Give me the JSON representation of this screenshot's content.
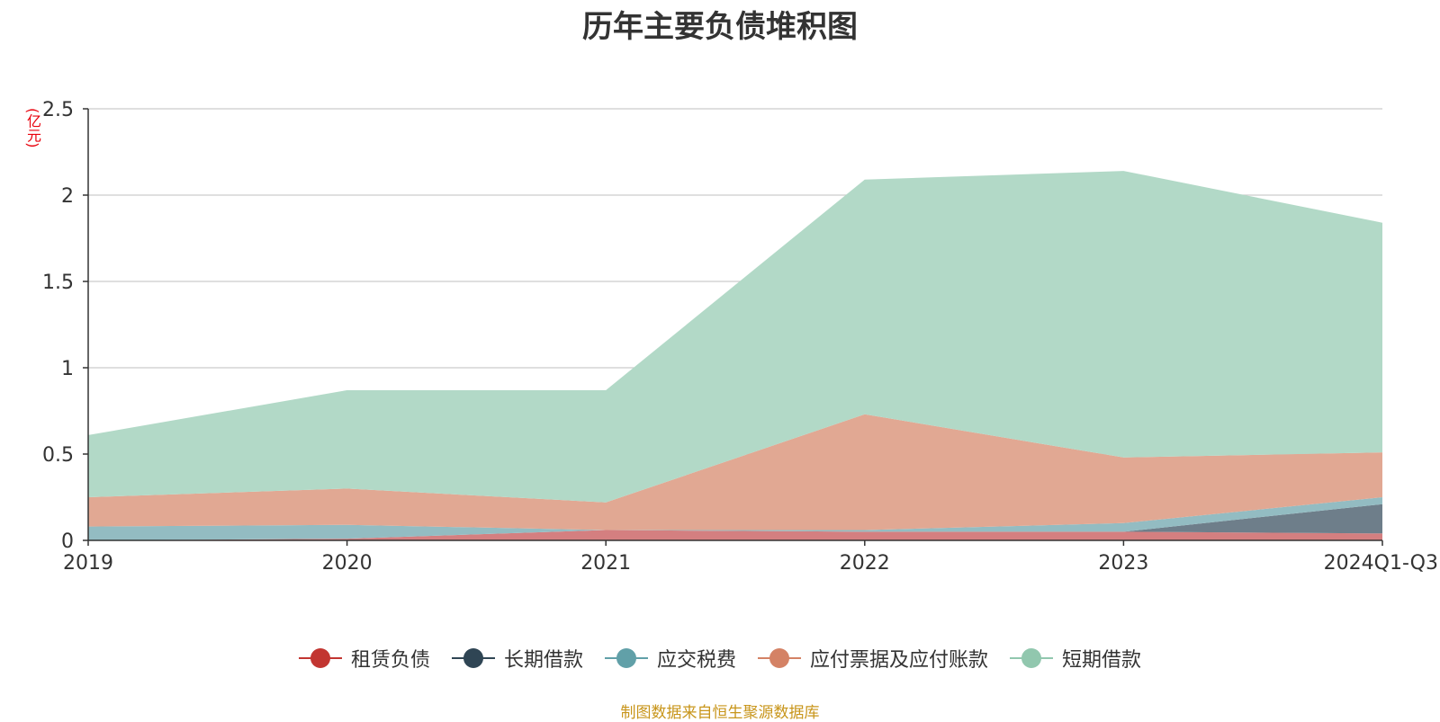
{
  "colors": {
    "title": "#333333",
    "unit_label": "#e8000b",
    "source_note": "#c8951a",
    "grid": "#cccccc",
    "axis": "#333333",
    "tick_text": "#333333"
  },
  "chart_data": {
    "type": "area",
    "stacked": true,
    "title": "历年主要负债堆积图",
    "unit": "(亿元)",
    "x": [
      "2019",
      "2020",
      "2021",
      "2022",
      "2023",
      "2024Q1-Q3"
    ],
    "ylim": [
      0,
      2.5
    ],
    "yticks": [
      0,
      0.5,
      1,
      1.5,
      2,
      2.5
    ],
    "ytick_labels": [
      "0",
      "0.5",
      "1",
      "1.5",
      "2",
      "2.5"
    ],
    "grid": true,
    "legend_position": "bottom",
    "series": [
      {
        "name": "租赁负债",
        "color": "#c23531",
        "fill": "#d47f80",
        "values": [
          0,
          0.01,
          0.06,
          0.05,
          0.05,
          0.04
        ]
      },
      {
        "name": "长期借款",
        "color": "#2f4554",
        "fill": "#6e7e8a",
        "values": [
          0,
          0,
          0,
          0,
          0,
          0.17
        ]
      },
      {
        "name": "应交税费",
        "color": "#61a0a8",
        "fill": "#93bcc2",
        "values": [
          0.08,
          0.08,
          0,
          0.01,
          0.05,
          0.04
        ]
      },
      {
        "name": "应付票据及应付账款",
        "color": "#d48265",
        "fill": "#e1a893",
        "values": [
          0.17,
          0.21,
          0.16,
          0.67,
          0.38,
          0.26
        ]
      },
      {
        "name": "短期借款",
        "color": "#91c7ae",
        "fill": "#b2d9c7",
        "values": [
          0.36,
          0.57,
          0.65,
          1.36,
          1.66,
          1.33
        ]
      }
    ]
  },
  "source_note": "制图数据来自恒生聚源数据库"
}
